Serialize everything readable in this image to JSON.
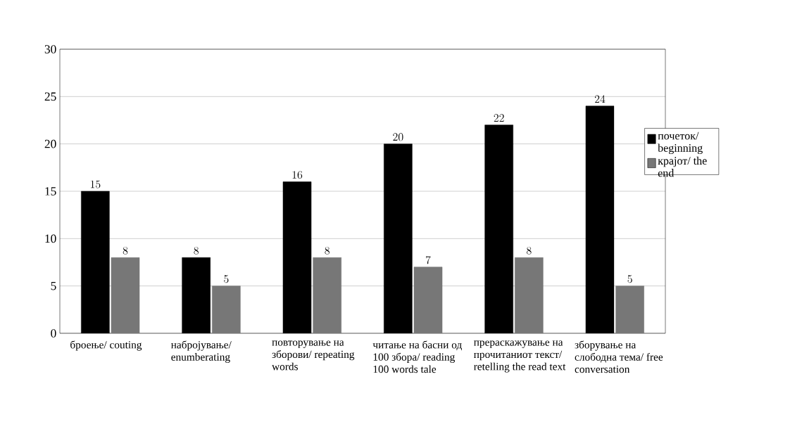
{
  "chart_data": {
    "type": "bar",
    "categories": [
      "броење/ couting",
      "набројување/ enumberating",
      "повторување на зборови/ repeating words",
      "читање на басни од 100 збора/ reading 100 words tale",
      "прераскажување на прочитаниот текст/ retelling the read text",
      "зборување на слободна тема/ free conversation"
    ],
    "series": [
      {
        "name": "почеток/ beginning",
        "color": "#000000",
        "values": [
          15,
          8,
          16,
          20,
          22,
          24
        ]
      },
      {
        "name": "крајот/ the end",
        "color": "#777777",
        "values": [
          8,
          5,
          8,
          7,
          8,
          5
        ]
      }
    ],
    "ylim": [
      0,
      30
    ],
    "yticks": [
      0,
      5,
      10,
      15,
      20,
      25,
      30
    ],
    "grid": "y",
    "legend": "right",
    "data_labels": true
  }
}
